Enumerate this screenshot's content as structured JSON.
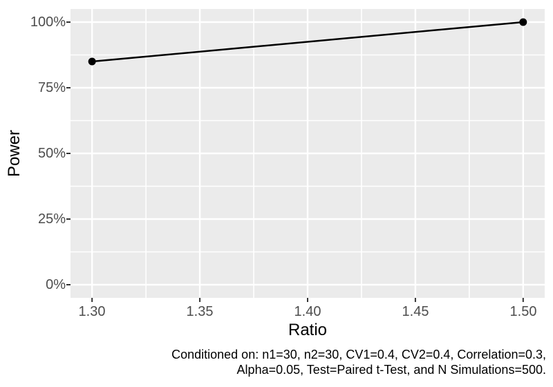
{
  "chart_data": {
    "type": "line",
    "title": "",
    "xlabel": "Ratio",
    "ylabel": "Power",
    "xlim": [
      1.29,
      1.51
    ],
    "ylim": [
      -0.05,
      1.05
    ],
    "grid": "major and minor white gridlines on grey panel",
    "legend_position": "none",
    "y_unit": "percent",
    "x_ticks": [
      {
        "value": 1.3,
        "label": "1.30"
      },
      {
        "value": 1.35,
        "label": "1.35"
      },
      {
        "value": 1.4,
        "label": "1.40"
      },
      {
        "value": 1.45,
        "label": "1.45"
      },
      {
        "value": 1.5,
        "label": "1.50"
      }
    ],
    "y_ticks": [
      {
        "value": 0.0,
        "label": "0%"
      },
      {
        "value": 0.25,
        "label": "25%"
      },
      {
        "value": 0.5,
        "label": "50%"
      },
      {
        "value": 0.75,
        "label": "75%"
      },
      {
        "value": 1.0,
        "label": "100%"
      }
    ],
    "series": [
      {
        "name": "Power",
        "color": "#000000",
        "point_radius": 5.5,
        "points": [
          {
            "x": 1.3,
            "y": 0.85
          },
          {
            "x": 1.5,
            "y": 1.0
          }
        ]
      }
    ],
    "caption_lines": [
      "Conditioned on: n1=30, n2=30, CV1=0.4, CV2=0.4, Correlation=0.3,",
      "Alpha=0.05, Test=Paired t-Test, and N Simulations=500."
    ],
    "colors": {
      "panel_bg": "#EBEBEB",
      "gridline": "#FFFFFF",
      "tick_text": "#4D4D4D",
      "tick_mark": "#333333",
      "axis_title_text": "#000000",
      "caption_text": "#000000",
      "series": "#000000"
    }
  }
}
